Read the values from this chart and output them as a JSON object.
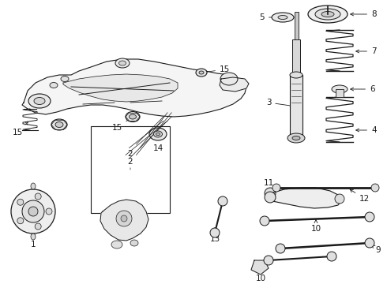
{
  "bg_color": "#ffffff",
  "fig_width": 4.9,
  "fig_height": 3.6,
  "dpi": 100,
  "line_color": "#1a1a1a",
  "label_fontsize": 7.5,
  "label_fontsize_small": 6.5
}
